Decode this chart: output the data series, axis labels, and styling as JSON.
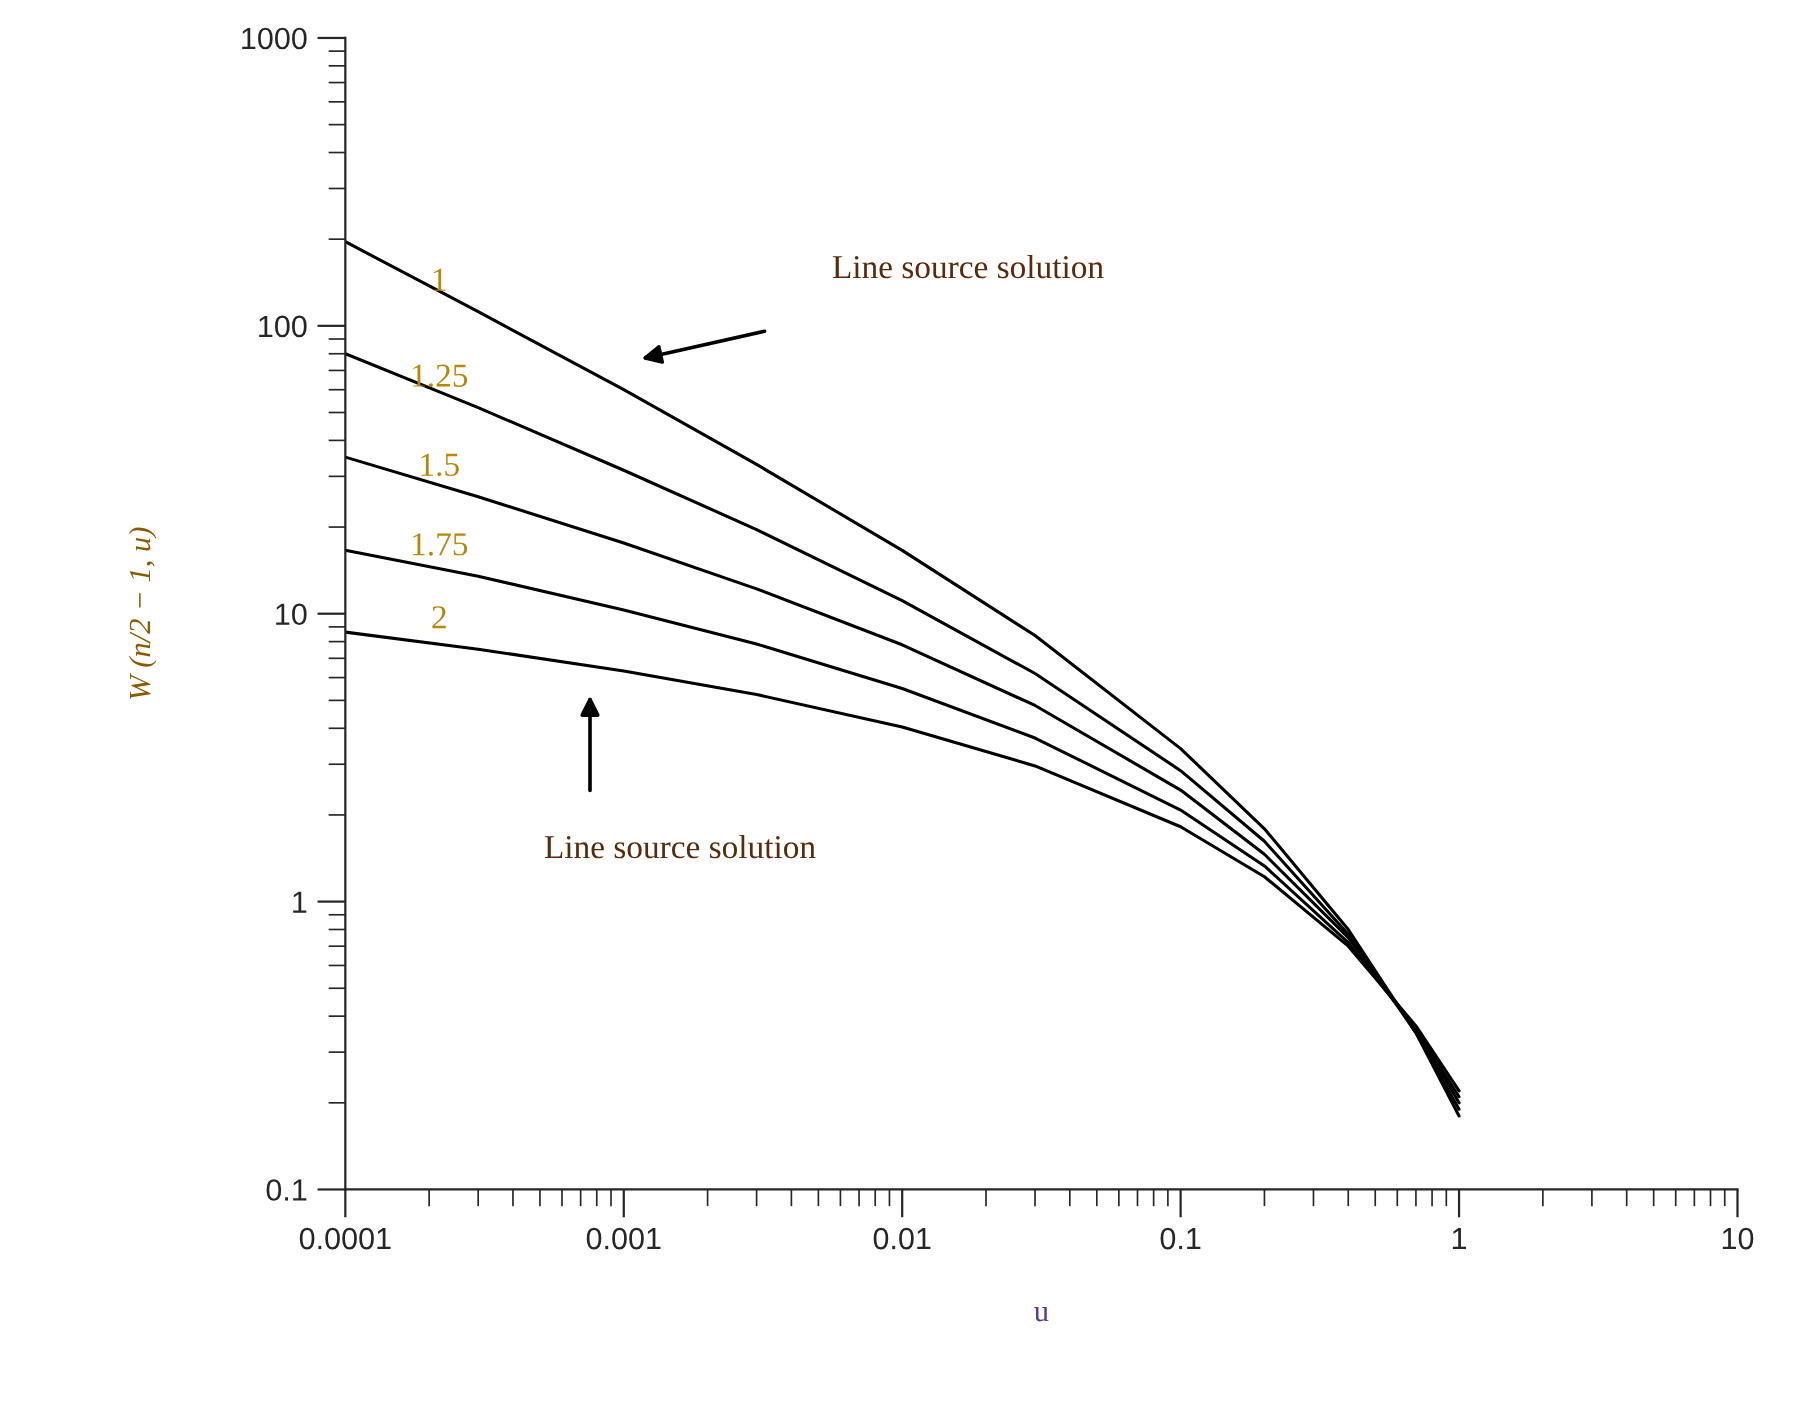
{
  "chart_data": {
    "type": "line",
    "xlabel": "u",
    "ylabel": "W (n/2 − 1, u)",
    "x": [
      0.0001,
      0.0003,
      0.001,
      0.003,
      0.01,
      0.03,
      0.1,
      0.2,
      0.4,
      0.7,
      1
    ],
    "series": [
      {
        "name": "1",
        "color": "#000000",
        "values": [
          196,
          112,
          60,
          33,
          16.6,
          8.4,
          3.4,
          1.79,
          0.8,
          0.35,
          0.18
        ]
      },
      {
        "name": "1.25",
        "color": "#000000",
        "values": [
          80,
          52,
          31.5,
          19.6,
          11.1,
          6.2,
          2.85,
          1.62,
          0.77,
          0.35,
          0.19
        ]
      },
      {
        "name": "1.5",
        "color": "#000000",
        "values": [
          35,
          25.5,
          17.6,
          12.2,
          7.8,
          4.8,
          2.44,
          1.46,
          0.75,
          0.36,
          0.2
        ]
      },
      {
        "name": "1.75",
        "color": "#000000",
        "values": [
          16.6,
          13.5,
          10.3,
          7.85,
          5.5,
          3.7,
          2.08,
          1.33,
          0.72,
          0.36,
          0.21
        ]
      },
      {
        "name": "2",
        "color": "#000000",
        "values": [
          8.63,
          7.53,
          6.33,
          5.24,
          4.04,
          2.96,
          1.82,
          1.22,
          0.7,
          0.37,
          0.22
        ]
      }
    ],
    "log": "xy",
    "xlim": [
      0.0001,
      10
    ],
    "ylim": [
      0.1,
      1000
    ],
    "xticks": [
      0.0001,
      0.001,
      0.01,
      0.1,
      1,
      10
    ],
    "yticks": [
      0.1,
      1,
      10,
      100,
      1000
    ],
    "grid": false,
    "legend": false,
    "marker": "none",
    "line_style": "solid",
    "annotations": [
      "Line source solution",
      "Line source solution"
    ]
  }
}
